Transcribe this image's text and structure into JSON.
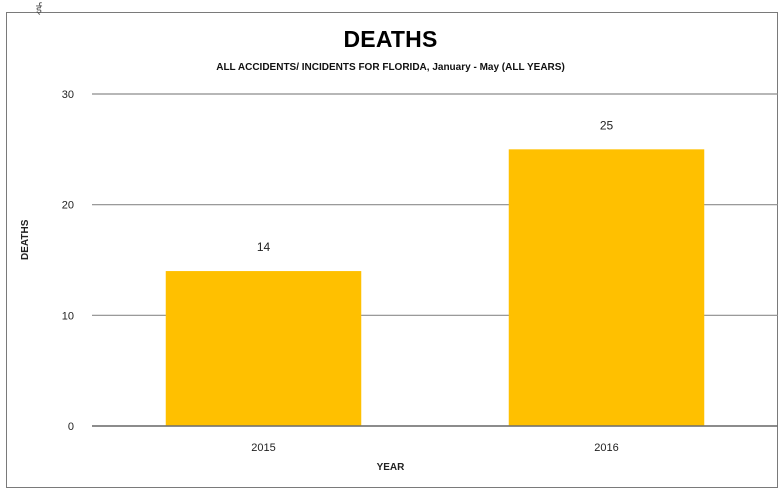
{
  "top_mark": "ई",
  "chart_data": {
    "type": "bar",
    "title": "DEATHS",
    "subtitle": "ALL ACCIDENTS/ INCIDENTS FOR FLORIDA, January  - May (ALL YEARS)",
    "xlabel": "YEAR",
    "ylabel": "DEATHS",
    "categories": [
      "2015",
      "2016"
    ],
    "values": [
      14,
      25
    ],
    "data_labels": [
      "14",
      "25"
    ],
    "ylim": [
      0,
      30
    ],
    "yticks": [
      "0",
      "10",
      "20",
      "30"
    ],
    "grid": true,
    "bar_color": "#FFC000",
    "grid_color": "#8c8c8c"
  }
}
